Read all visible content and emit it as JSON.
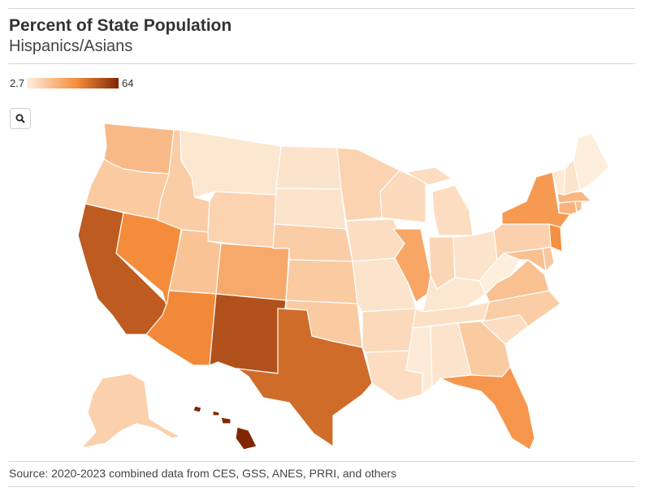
{
  "header": {
    "title": "Percent of State Population",
    "subtitle": "Hispanics/Asians"
  },
  "legend": {
    "min_label": "2.7",
    "max_label": "64",
    "colors": [
      "#fdeedd",
      "#f58b3a",
      "#7f2704"
    ]
  },
  "toolbar": {
    "zoom_icon": "search-icon"
  },
  "map_data": {
    "type": "choropleth",
    "region": "United States",
    "color_scale": {
      "min": 2.7,
      "max": 64
    },
    "states": {
      "WA": 19,
      "OR": 14,
      "CA": 48,
      "NV": 33,
      "ID": 13,
      "MT": 5,
      "WY": 11,
      "UT": 16,
      "AZ": 34,
      "CO": 24,
      "NM": 51,
      "ND": 6,
      "SD": 6,
      "NE": 13,
      "KS": 14,
      "OK": 14,
      "TX": 43,
      "MN": 11,
      "IA": 8,
      "MO": 6,
      "AR": 9,
      "LA": 8,
      "WI": 9,
      "IL": 25,
      "MI": 8,
      "IN": 10,
      "OH": 6,
      "KY": 5,
      "TN": 7,
      "MS": 4,
      "AL": 6,
      "GA": 14,
      "FL": 30,
      "SC": 8,
      "NC": 13,
      "VA": 17,
      "WV": 2.7,
      "MD": 17,
      "DE": 15,
      "NJ": 32,
      "PA": 12,
      "NY": 29,
      "CT": 21,
      "RI": 18,
      "MA": 20,
      "VT": 4,
      "NH": 6,
      "ME": 3,
      "AK": 12,
      "HI": 64
    }
  },
  "footer": {
    "source": "Source: 2020-2023 combined data from CES, GSS, ANES, PRRI, and others"
  }
}
